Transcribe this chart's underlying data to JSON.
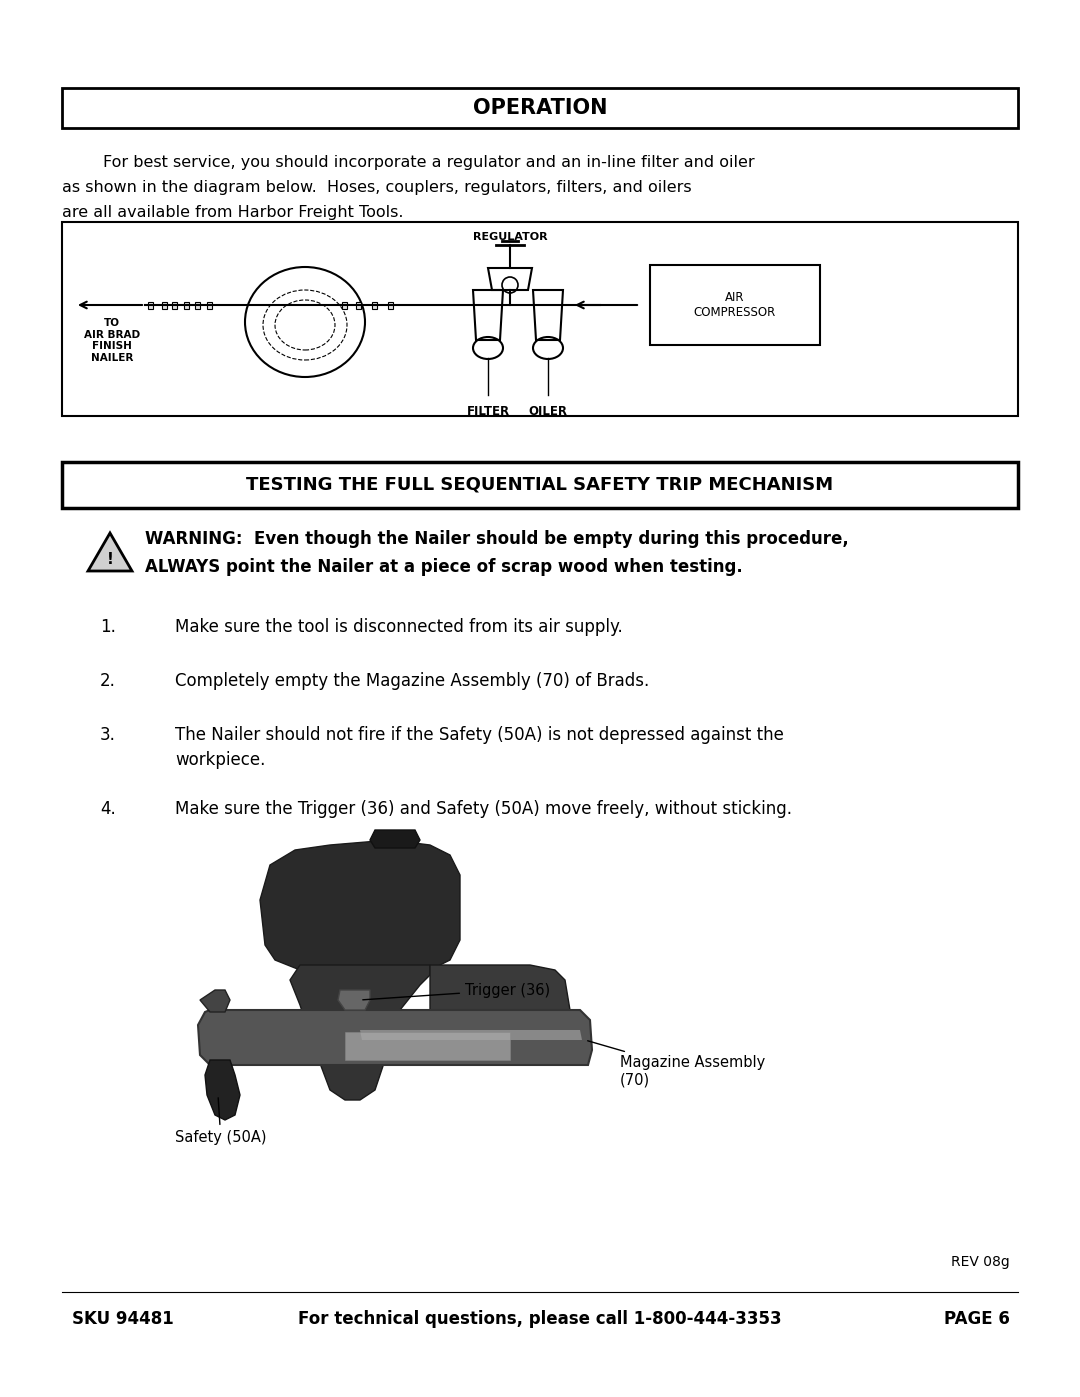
{
  "page_bg": "#ffffff",
  "title1": "OPERATION",
  "title2": "TESTING THE FULL SEQUENTIAL SAFETY TRIP MECHANISM",
  "op_line1": "        For best service, you should incorporate a regulator and an in-line filter and oiler",
  "op_line2": "as shown in the diagram below.  Hoses, couplers, regulators, filters, and oilers",
  "op_line3": "are all available from Harbor Freight Tools.",
  "warning_line1": "WARNING:  Even though the Nailer should be empty during this procedure,",
  "warning_line2": "ALWAYS point the Nailer at a piece of scrap wood when testing.",
  "step1": "Make sure the tool is disconnected from its air supply.",
  "step2": "Completely empty the Magazine Assembly (70) of Brads.",
  "step3a": "The Nailer should not fire if the Safety (50A) is not depressed against the",
  "step3b": "workpiece.",
  "step4": "Make sure the Trigger (36) and Safety (50A) move freely, without sticking.",
  "footer_left": "SKU 94481",
  "footer_center": "For technical questions, please call 1-800-444-3353",
  "footer_right": "PAGE 6",
  "rev": "REV 08g",
  "label_trigger": "Trigger (36)",
  "label_magazine": "Magazine Assembly\n(70)",
  "label_safety": "Safety (50A)",
  "diag_label_regulator": "REGULATOR",
  "diag_label_filter": "FILTER",
  "diag_label_oiler": "OILER",
  "diag_label_compressor": "AIR\nCOMPRESSOR",
  "diag_label_to": "TO\nAIR BRAD\nFINISH\nNAILER"
}
